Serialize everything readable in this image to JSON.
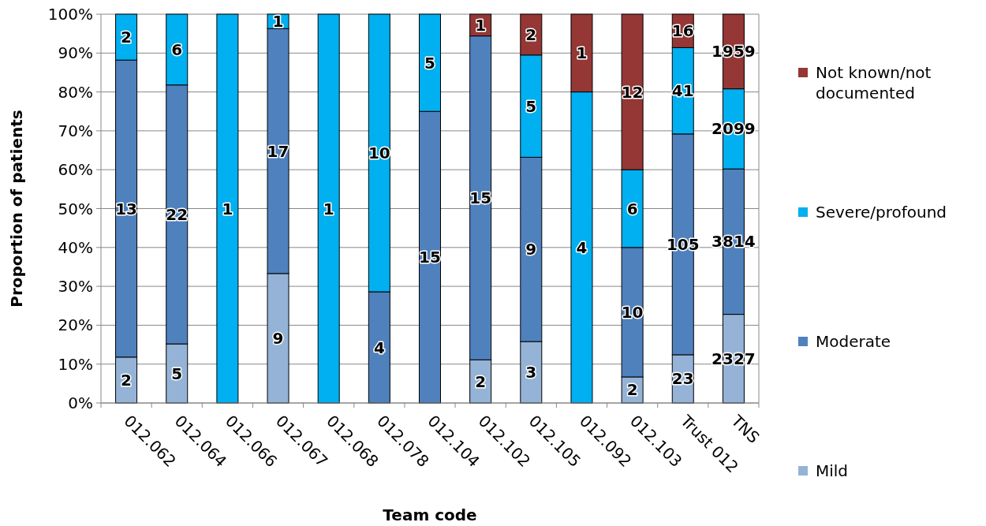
{
  "chart_data": {
    "type": "bar",
    "stacked": true,
    "xlabel": "Team code",
    "ylabel": "Proportion of patients",
    "categories": [
      "012.062",
      "012.064",
      "012.066",
      "012.067",
      "012.068",
      "012.078",
      "012.104",
      "012.102",
      "012.105",
      "012.092",
      "012.103",
      "Trust 012",
      "TNS"
    ],
    "series": [
      {
        "name": "Mild",
        "color": "#95b3d7",
        "values": [
          11.8,
          15.2,
          0,
          33.3,
          0,
          0,
          0,
          11.1,
          15.8,
          0,
          6.7,
          12.4,
          22.8
        ]
      },
      {
        "name": "Moderate",
        "color": "#4f81bd",
        "values": [
          76.4,
          66.6,
          0,
          63.0,
          0,
          28.6,
          75.0,
          83.3,
          47.4,
          0,
          33.3,
          56.8,
          37.4
        ]
      },
      {
        "name": "Severe/profound",
        "color": "#00b0f0",
        "values": [
          11.8,
          18.2,
          100,
          3.7,
          100,
          71.4,
          25.0,
          0,
          26.3,
          80.0,
          20.0,
          22.2,
          20.6
        ]
      },
      {
        "name": "Not known/not documented",
        "color": "#953735",
        "values": [
          0,
          0,
          0,
          0,
          0,
          0,
          0,
          5.6,
          10.5,
          20.0,
          40.0,
          8.6,
          19.2
        ]
      }
    ],
    "annotations": [
      "2",
      "13",
      "2",
      "5",
      "22",
      "6",
      "1",
      "9",
      "17",
      "1",
      "1",
      "4",
      "10",
      "15",
      "5",
      "2",
      "15",
      "1",
      "3",
      "9",
      "5",
      "2",
      "4",
      "1",
      "2",
      "10",
      "6",
      "12",
      "23",
      "105",
      "41",
      "16",
      "2327",
      "3814",
      "2099",
      "1959"
    ],
    "ylim": [
      0,
      100
    ],
    "yticks": [
      {
        "value": 0,
        "label": "0%"
      },
      {
        "value": 10,
        "label": "10%"
      },
      {
        "value": 20,
        "label": "20%"
      },
      {
        "value": 30,
        "label": "30%"
      },
      {
        "value": 40,
        "label": "40%"
      },
      {
        "value": 50,
        "label": "50%"
      },
      {
        "value": 60,
        "label": "60%"
      },
      {
        "value": 70,
        "label": "70%"
      },
      {
        "value": 80,
        "label": "80%"
      },
      {
        "value": 90,
        "label": "90%"
      },
      {
        "value": 100,
        "label": "100%"
      }
    ],
    "grid": "y",
    "legend": "right"
  }
}
